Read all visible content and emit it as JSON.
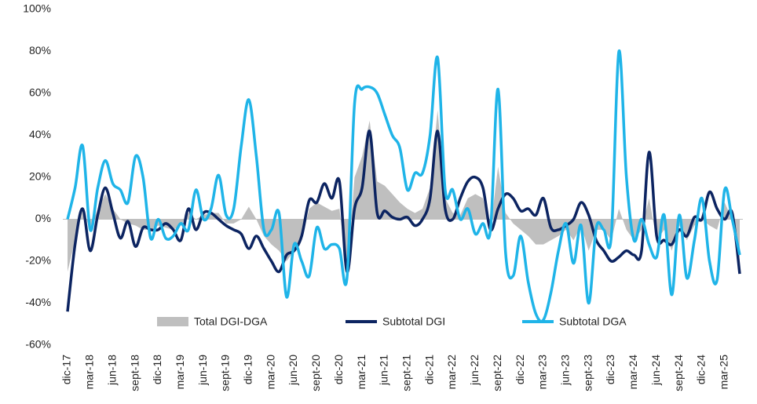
{
  "chart_data": {
    "type": "line",
    "categories": [
      "dic-17",
      null,
      null,
      "mar-18",
      null,
      null,
      "jun-18",
      null,
      null,
      "sept-18",
      null,
      null,
      "dic-18",
      null,
      null,
      "mar-19",
      null,
      null,
      "jun-19",
      null,
      null,
      "sept-19",
      null,
      null,
      "dic-19",
      null,
      null,
      "mar-20",
      null,
      null,
      "jun-20",
      null,
      null,
      "sept-20",
      null,
      null,
      "dic-20",
      null,
      null,
      "mar-21",
      null,
      null,
      "jun-21",
      null,
      null,
      "sept-21",
      null,
      null,
      "dic-21",
      null,
      null,
      "mar-22",
      null,
      null,
      "jun-22",
      null,
      null,
      "sept-22",
      null,
      null,
      "dic-22",
      null,
      null,
      "mar-23",
      null,
      null,
      "jun-23",
      null,
      null,
      "sept-23",
      null,
      null,
      "dic-23",
      null,
      null,
      "mar-24",
      null,
      null,
      "jun-24",
      null,
      null,
      "sept-24",
      null,
      null,
      "dic-24",
      null,
      null,
      "mar-25",
      null,
      null
    ],
    "series": [
      {
        "name": "Total DGI-DGA",
        "color": "#bfbfbf",
        "kind": "area",
        "values": [
          -25,
          -10,
          5,
          -5,
          5,
          12,
          5,
          0,
          -2,
          -3,
          -5,
          -5,
          -3,
          -4,
          -5,
          -3,
          3,
          0,
          2,
          3,
          3,
          -2,
          -2,
          0,
          6,
          0,
          -8,
          -12,
          -15,
          -20,
          -15,
          -10,
          5,
          8,
          6,
          4,
          5,
          -25,
          20,
          30,
          47,
          18,
          16,
          12,
          8,
          5,
          3,
          5,
          15,
          52,
          10,
          3,
          2,
          10,
          12,
          10,
          -5,
          25,
          3,
          -2,
          -5,
          -8,
          -12,
          -12,
          -10,
          -8,
          -5,
          -10,
          -3,
          -15,
          -5,
          -5,
          -10,
          5,
          -5,
          -10,
          -5,
          10,
          -10,
          -5,
          -15,
          -3,
          -10,
          -3,
          0,
          -3,
          -5,
          8,
          0,
          -18
        ]
      },
      {
        "name": "Subtotal DGI",
        "color": "#0c2461",
        "kind": "line",
        "values": [
          -44,
          -12,
          5,
          -15,
          2,
          15,
          3,
          -9,
          -1,
          -13,
          -4,
          -5,
          -5,
          -2,
          -5,
          -10,
          5,
          -5,
          3,
          3,
          0,
          -3,
          -5,
          -7,
          -14,
          -8,
          -14,
          -20,
          -25,
          -17,
          -15,
          -8,
          9,
          8,
          17,
          10,
          18,
          -25,
          5,
          15,
          42,
          3,
          4,
          1,
          0,
          1,
          -3,
          0,
          10,
          42,
          5,
          0,
          10,
          18,
          20,
          15,
          -5,
          5,
          12,
          10,
          4,
          5,
          2,
          10,
          -4,
          -5,
          -3,
          0,
          8,
          2,
          -10,
          -15,
          -20,
          -18,
          -15,
          -17,
          -15,
          32,
          -8,
          -10,
          -12,
          -5,
          -8,
          1,
          0,
          13,
          5,
          0,
          3,
          -26
        ]
      },
      {
        "name": "Subtotal DGA",
        "color": "#1fb4e8",
        "kind": "line",
        "values": [
          0,
          15,
          35,
          -5,
          15,
          28,
          17,
          14,
          8,
          30,
          20,
          -9,
          0,
          -9,
          -8,
          -2,
          -5,
          14,
          0,
          5,
          21,
          2,
          5,
          35,
          57,
          30,
          -5,
          -5,
          3,
          -37,
          -12,
          -20,
          -27,
          -4,
          -14,
          -12,
          -14,
          -28,
          55,
          62,
          63,
          60,
          50,
          40,
          34,
          14,
          22,
          22,
          40,
          77,
          14,
          14,
          0,
          5,
          -7,
          -2,
          -5,
          62,
          -16,
          -27,
          -8,
          -30,
          -45,
          -48,
          -35,
          -15,
          -2,
          -21,
          -3,
          -40,
          -4,
          -5,
          -8,
          80,
          20,
          -10,
          0,
          -12,
          -18,
          2,
          -36,
          2,
          -28,
          -10,
          10,
          -20,
          -29,
          14,
          0,
          -17
        ]
      }
    ],
    "ylim": [
      -60,
      100
    ],
    "yticks": [
      {
        "value": -60,
        "label": "-60%"
      },
      {
        "value": -40,
        "label": "-40%"
      },
      {
        "value": -20,
        "label": "-20%"
      },
      {
        "value": 0,
        "label": "0%"
      },
      {
        "value": 20,
        "label": "20%"
      },
      {
        "value": 40,
        "label": "40%"
      },
      {
        "value": 60,
        "label": "60%"
      },
      {
        "value": 80,
        "label": "80%"
      },
      {
        "value": 100,
        "label": "100%"
      }
    ],
    "legend": "bottom"
  }
}
